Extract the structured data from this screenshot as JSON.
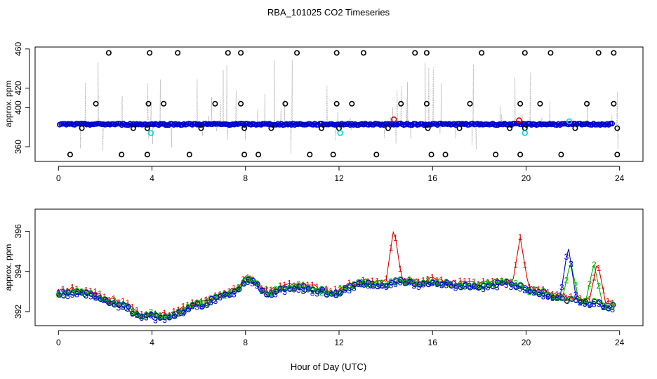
{
  "title": "RBA_101025  CO2 Timeseries",
  "xlabel": "Hour of Day (UTC)",
  "colors": {
    "series1": "#e00000",
    "series2": "#00b000",
    "series3": "#0000d0",
    "cyan": "#00d8d8",
    "grey": "#a0a0a0"
  },
  "chart_data": [
    {
      "type": "scatter",
      "panel": "top",
      "ylabel": "approx. ppm",
      "xlim": [
        -1,
        25
      ],
      "ylim": [
        345,
        462
      ],
      "xticks": [
        0,
        4,
        8,
        12,
        16,
        20,
        24
      ],
      "yticks": [
        360,
        400,
        420,
        460
      ],
      "baseline_ppm": 383,
      "outliers_high": [
        [
          2.15,
          456
        ],
        [
          3.9,
          456
        ],
        [
          5.1,
          456
        ],
        [
          7.25,
          456
        ],
        [
          7.8,
          456
        ],
        [
          10.2,
          456
        ],
        [
          11.9,
          456
        ],
        [
          13.05,
          456
        ],
        [
          15.25,
          456
        ],
        [
          15.75,
          456
        ],
        [
          18.1,
          456
        ],
        [
          19.95,
          456
        ],
        [
          21.05,
          456
        ],
        [
          23.1,
          456
        ],
        [
          23.75,
          456
        ]
      ],
      "outliers_mid": [
        [
          1.6,
          404
        ],
        [
          3.85,
          404
        ],
        [
          4.5,
          404
        ],
        [
          6.7,
          404
        ],
        [
          7.8,
          404
        ],
        [
          9.7,
          404
        ],
        [
          11.9,
          404
        ],
        [
          12.55,
          404
        ],
        [
          14.65,
          404
        ],
        [
          15.75,
          404
        ],
        [
          17.6,
          404
        ],
        [
          19.75,
          404
        ],
        [
          20.6,
          404
        ],
        [
          22.6,
          404
        ],
        [
          23.75,
          404
        ]
      ],
      "outliers_low": [
        [
          0.5,
          352
        ],
        [
          2.7,
          352
        ],
        [
          3.8,
          352
        ],
        [
          5.6,
          352
        ],
        [
          7.95,
          352
        ],
        [
          8.55,
          352
        ],
        [
          10.75,
          352
        ],
        [
          11.75,
          352
        ],
        [
          13.6,
          352
        ],
        [
          15.95,
          352
        ],
        [
          16.55,
          352
        ],
        [
          18.7,
          352
        ],
        [
          19.75,
          352
        ],
        [
          21.5,
          352
        ],
        [
          23.9,
          352
        ]
      ],
      "outliers_near": [
        [
          1.0,
          379
        ],
        [
          3.2,
          379
        ],
        [
          3.8,
          379
        ],
        [
          6.1,
          379
        ],
        [
          7.95,
          379
        ],
        [
          9.1,
          379
        ],
        [
          11.25,
          379
        ],
        [
          12.0,
          379
        ],
        [
          14.1,
          379
        ],
        [
          15.8,
          379
        ],
        [
          17.15,
          379
        ],
        [
          19.3,
          379
        ],
        [
          19.95,
          379
        ],
        [
          22.1,
          379
        ],
        [
          23.9,
          379
        ]
      ],
      "cyan_points": [
        [
          3.95,
          374
        ],
        [
          12.05,
          374
        ],
        [
          19.95,
          374
        ],
        [
          21.85,
          386
        ]
      ],
      "red_points": [
        [
          14.35,
          388
        ],
        [
          19.7,
          387
        ]
      ]
    },
    {
      "type": "scatter",
      "panel": "bottom",
      "ylabel": "approx. ppm",
      "xlim": [
        -1,
        25
      ],
      "ylim": [
        391.3,
        397.1
      ],
      "xticks": [
        0,
        4,
        8,
        12,
        16,
        20,
        24
      ],
      "yticks": [
        392,
        394,
        396
      ],
      "marker_labels": [
        "1",
        "2",
        "3"
      ],
      "x": [
        0.0,
        0.5,
        1.0,
        1.5,
        2.0,
        2.5,
        3.0,
        3.3,
        3.6,
        3.9,
        4.2,
        4.6,
        5.0,
        5.4,
        5.8,
        6.2,
        6.6,
        7.0,
        7.4,
        7.8,
        8.0,
        8.3,
        8.6,
        9.0,
        9.4,
        9.8,
        10.2,
        10.6,
        11.0,
        11.4,
        11.8,
        12.2,
        12.6,
        13.0,
        13.5,
        14.0,
        14.3,
        14.6,
        15.0,
        15.5,
        16.0,
        16.5,
        17.0,
        17.5,
        18.0,
        18.5,
        19.0,
        19.4,
        19.7,
        20.0,
        20.4,
        20.8,
        21.2,
        21.6,
        21.8,
        22.0,
        22.4,
        22.8,
        22.95,
        23.1,
        23.3,
        23.6
      ],
      "y": [
        392.9,
        393.0,
        392.95,
        392.8,
        392.6,
        392.4,
        392.2,
        391.9,
        391.75,
        391.9,
        391.7,
        391.75,
        391.85,
        392.1,
        392.3,
        392.4,
        392.6,
        392.8,
        393.0,
        393.2,
        393.7,
        393.5,
        393.2,
        392.9,
        393.1,
        393.2,
        393.3,
        393.15,
        393.1,
        393.0,
        392.9,
        393.1,
        393.3,
        393.4,
        393.35,
        393.4,
        393.45,
        393.5,
        393.5,
        393.4,
        393.5,
        393.4,
        393.35,
        393.3,
        393.3,
        393.35,
        393.45,
        393.4,
        393.3,
        393.1,
        393.0,
        392.9,
        392.8,
        392.7,
        392.6,
        392.6,
        392.5,
        392.5,
        392.5,
        392.5,
        392.3,
        392.3
      ],
      "series": [
        {
          "name": "1",
          "color": "#e00000",
          "spikes": [
            [
              14.35,
              396.2
            ],
            [
              19.75,
              395.7
            ],
            [
              23.05,
              394.5
            ]
          ]
        },
        {
          "name": "2",
          "color": "#00b000",
          "spikes": [
            [
              22.9,
              394.4
            ],
            [
              21.9,
              394.5
            ]
          ]
        },
        {
          "name": "3",
          "color": "#0000d0",
          "spikes": [
            [
              21.8,
              395.3
            ]
          ]
        }
      ]
    }
  ]
}
